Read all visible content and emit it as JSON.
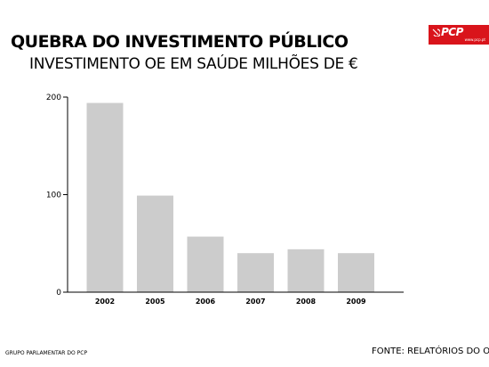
{
  "header": {
    "title": "QUEBRA DO INVESTIMENTO PÚBLICO",
    "subtitle": "INVESTIMENTO OE EM SAÚDE MILHÕES DE €"
  },
  "logo": {
    "brand": "PCP",
    "url": "www.pcp.pt",
    "icon": "hammer-sickle-icon",
    "color": "#d9141b"
  },
  "footer": {
    "left": "GRUPO PARLAMENTAR DO PCP",
    "right": "FONTE: RELATÓRIOS DO OE"
  },
  "chart_data": {
    "type": "bar",
    "categories": [
      "2002",
      "2005",
      "2006",
      "2007",
      "2008",
      "2009"
    ],
    "values": [
      194,
      99,
      57,
      40,
      44,
      40
    ],
    "yticks": [
      0,
      100,
      200
    ],
    "ylim": [
      0,
      200
    ],
    "bar_color": "#cccccc",
    "grid": false
  }
}
